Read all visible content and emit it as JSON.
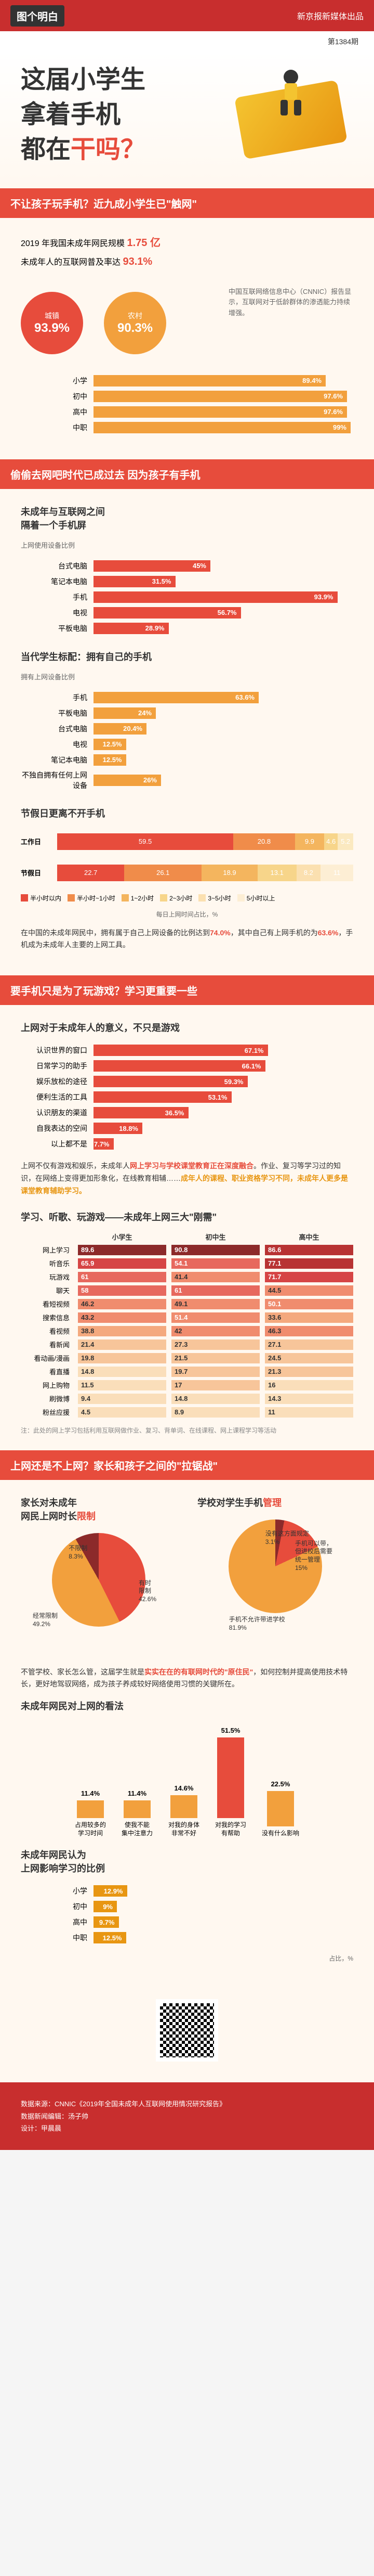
{
  "header": {
    "logo": "图个明白",
    "brand": "新京报新媒体出品",
    "issue": "第1384期"
  },
  "hero": {
    "line1": "这届小学生",
    "line2": "拿着手机",
    "line3_a": "都在",
    "line3_b": "干吗？"
  },
  "s1": {
    "title": "不让孩子玩手机？近九成小学生已\"触网\"",
    "lead_a": "2019 年我国未成年网民规模",
    "lead_b": "1.75 亿",
    "lead_c": "未成年人的互联网普及率达",
    "lead_d": "93.1%",
    "circles": [
      {
        "label": "城镇",
        "pct": "93.9%"
      },
      {
        "label": "农村",
        "pct": "90.3%"
      }
    ],
    "aside": "中国互联网络信息中心（CNNIC）报告显示，互联网对于低龄群体的渗透能力持续增强。",
    "bars": {
      "max": 100,
      "colors": [
        "#f2a03d",
        "#f2a03d",
        "#f2a03d",
        "#f2a03d"
      ],
      "rows": [
        {
          "label": "小学",
          "val": 89.4
        },
        {
          "label": "初中",
          "val": 97.6
        },
        {
          "label": "高中",
          "val": 97.6
        },
        {
          "label": "中职",
          "val": 99.0
        }
      ]
    }
  },
  "s2": {
    "title": "偷偷去网吧时代已成过去 因为孩子有手机",
    "sub1": "未成年与互联网之间\n隔着一个手机屏",
    "sub1b": "上网使用设备比例",
    "bars1": {
      "colors": [
        "#e74c3c",
        "#e74c3c",
        "#e74c3c",
        "#e74c3c",
        "#e74c3c"
      ],
      "rows": [
        {
          "label": "台式电脑",
          "val": 45.0
        },
        {
          "label": "笔记本电脑",
          "val": 31.5
        },
        {
          "label": "手机",
          "val": 93.9
        },
        {
          "label": "电视",
          "val": 56.7
        },
        {
          "label": "平板电脑",
          "val": 28.9
        }
      ]
    },
    "sub2": "当代学生标配：拥有自己的手机",
    "sub2b": "拥有上网设备比例",
    "bars2": {
      "colors": [
        "#f2a03d",
        "#f2a03d",
        "#f2a03d",
        "#f2a03d",
        "#f2a03d",
        "#f2a03d"
      ],
      "rows": [
        {
          "label": "手机",
          "val": 63.6
        },
        {
          "label": "平板电脑",
          "val": 24.0
        },
        {
          "label": "台式电脑",
          "val": 20.4
        },
        {
          "label": "电视",
          "val": 12.5
        },
        {
          "label": "笔记本电脑",
          "val": 12.5
        },
        {
          "label": "不独自拥有任何上网设备",
          "val": 26.0
        }
      ]
    },
    "sub3": "节假日更离不开手机",
    "stacked": {
      "rows": [
        {
          "label": "工作日",
          "segs": [
            {
              "v": 59.5,
              "c": "#e74c3c"
            },
            {
              "v": 20.8,
              "c": "#f08c4a"
            },
            {
              "v": 9.9,
              "c": "#f4b55e"
            },
            {
              "v": 4.6,
              "c": "#f7d58a"
            },
            {
              "v": 5.2,
              "c": "#fbe9c0"
            }
          ]
        },
        {
          "label": "节假日",
          "segs": [
            {
              "v": 22.7,
              "c": "#e74c3c"
            },
            {
              "v": 26.1,
              "c": "#f08c4a"
            },
            {
              "v": 18.9,
              "c": "#f4b55e"
            },
            {
              "v": 13.1,
              "c": "#f7d58a"
            },
            {
              "v": 8.2,
              "c": "#fbe0b0"
            },
            {
              "v": 11.0,
              "c": "#fdeed4"
            }
          ]
        }
      ],
      "legend": [
        {
          "c": "#e74c3c",
          "t": "半小时以内"
        },
        {
          "c": "#f08c4a",
          "t": "半小时~1小时"
        },
        {
          "c": "#f4b55e",
          "t": "1~2小时"
        },
        {
          "c": "#f7d58a",
          "t": "2~3小时"
        },
        {
          "c": "#fbe0b0",
          "t": "3~5小时"
        },
        {
          "c": "#fdeed4",
          "t": "5小时以上"
        }
      ],
      "axis_label": "每日上网时间占比，%"
    },
    "narr_a": "在中国的未成年网民中，拥有属于自己上网设备的比例达到",
    "narr_b": "74.0%",
    "narr_c": "，其中自己有上网手机的为",
    "narr_d": "63.6%",
    "narr_e": "，手机成为未成年人主要的上网工具。"
  },
  "s3": {
    "title": "要手机只是为了玩游戏？学习更重要一些",
    "sub": "上网对于未成年人的意义，不只是游戏",
    "bars": {
      "colors": [
        "#e74c3c",
        "#e74c3c",
        "#e74c3c",
        "#e74c3c",
        "#e74c3c",
        "#e74c3c",
        "#e74c3c"
      ],
      "rows": [
        {
          "label": "认识世界的窗口",
          "val": 67.1
        },
        {
          "label": "日常学习的助手",
          "val": 66.1
        },
        {
          "label": "娱乐放松的途径",
          "val": 59.3
        },
        {
          "label": "便利生活的工具",
          "val": 53.1
        },
        {
          "label": "认识朋友的渠道",
          "val": 36.5
        },
        {
          "label": "自我表达的空间",
          "val": 18.8
        },
        {
          "label": "以上都不是",
          "val": 7.7
        }
      ]
    },
    "narr": "上网不仅有游戏和娱乐，未成年人<span class='hl'>网上学习与学校课堂教育正在深度融合</span>。作业、复习等学习过的知识，在网络上变得更加形象化，在线教育相辅……<span class='hl2'>成年人的课程、职业资格学习不同，未成年人更多是课堂教育辅助学习。</span>",
    "sub2": "学习、听歌、玩游戏——未成年上网三大\"刚需\"",
    "table": {
      "cols": [
        "小学生",
        "初中生",
        "高中生"
      ],
      "color_scale": [
        "#8c2a2a",
        "#b83333",
        "#d64545",
        "#e7695e",
        "#f08c6e",
        "#f4a97e",
        "#f7c59a",
        "#fadeba"
      ],
      "rows": [
        {
          "label": "网上学习",
          "vals": [
            89.6,
            90.8,
            86.6
          ]
        },
        {
          "label": "听音乐",
          "vals": [
            65.9,
            54.1,
            77.1
          ]
        },
        {
          "label": "玩游戏",
          "vals": [
            61.0,
            41.4,
            71.7
          ]
        },
        {
          "label": "聊天",
          "vals": [
            58.0,
            61.0,
            44.5
          ]
        },
        {
          "label": "看短视频",
          "vals": [
            46.2,
            49.1,
            50.1
          ]
        },
        {
          "label": "搜索信息",
          "vals": [
            43.2,
            51.4,
            33.6
          ]
        },
        {
          "label": "看视频",
          "vals": [
            38.8,
            42.0,
            46.3
          ]
        },
        {
          "label": "看新闻",
          "vals": [
            21.4,
            27.3,
            27.1
          ]
        },
        {
          "label": "看动画/漫画",
          "vals": [
            19.8,
            21.5,
            24.5
          ]
        },
        {
          "label": "看直播",
          "vals": [
            14.8,
            19.7,
            21.3
          ]
        },
        {
          "label": "网上购物",
          "vals": [
            11.5,
            17.0,
            16.0
          ]
        },
        {
          "label": "刷微博",
          "vals": [
            9.4,
            14.8,
            14.3
          ]
        },
        {
          "label": "粉丝应援",
          "vals": [
            4.5,
            8.9,
            11.0
          ]
        }
      ],
      "note": "注：此处的网上学习包括利用互联网做作业、复习、背单词、在线课程、网上课程学习等活动"
    }
  },
  "s4": {
    "title": "上网还是不上网？家长和孩子之间的\"拉锯战\"",
    "col1_title": "家长对未成年\n网民上网时长限制",
    "col1_title_hl": "限制",
    "pie1": {
      "segs": [
        {
          "label": "有时限制",
          "pct": 42.6,
          "color": "#e74c3c"
        },
        {
          "label": "经常限制",
          "pct": 49.2,
          "color": "#f2a03d"
        },
        {
          "label": "不限制",
          "pct": 8.3,
          "color": "#8c2a2a"
        }
      ]
    },
    "col2_title": "学校对学生手机管理",
    "col2_title_hl": "管理",
    "pie2": {
      "segs": [
        {
          "label": "没有这方面规定",
          "pct": 3.1,
          "color": "#8c2a2a"
        },
        {
          "label": "手机可以带，但进校后需要统一管理",
          "pct": 15.0,
          "color": "#e74c3c"
        },
        {
          "label": "手机不允许带进学校",
          "pct": 81.9,
          "color": "#f2a03d"
        }
      ]
    },
    "narr": "不管学校、家长怎么管，这届学生就是<span class='hl'>实实在在的有联网时代的\"原住民\"</span>，如何控制并提高使用技术特长，更好地驾驭网络，成为孩子养成较好网络使用习惯的关键所在。",
    "sub2": "未成年网民对上网的看法",
    "vbars": {
      "max": 60,
      "rows": [
        {
          "label": "占用较多的\n学习时间",
          "val": 11.4,
          "color": "#f2a03d"
        },
        {
          "label": "使我不能\n集中注意力",
          "val": 11.4,
          "color": "#f2a03d"
        },
        {
          "label": "对我的身体\n非常不好",
          "val": 14.6,
          "color": "#f2a03d"
        },
        {
          "label": "对我的学习\n有帮助",
          "val": 51.5,
          "color": "#e74c3c"
        },
        {
          "label": "没有什么影响",
          "val": 22.5,
          "color": "#f2a03d"
        }
      ]
    },
    "sub3": "未成年网民认为\n上网影响学习的比例",
    "bars3": {
      "rows": [
        {
          "label": "小学",
          "val": 12.9,
          "color": "#e89612"
        },
        {
          "label": "初中",
          "val": 9.0,
          "color": "#e89612"
        },
        {
          "label": "高中",
          "val": 9.7,
          "color": "#e89612"
        },
        {
          "label": "中职",
          "val": 12.5,
          "color": "#e89612"
        }
      ],
      "axis": "占比，%"
    }
  },
  "footer": {
    "source": "数据来源：CNNIC《2019年全国未成年人互联网使用情况研究报告》",
    "editor": "数据新闻编辑：汤子帅",
    "design": "设计：甲晨晨"
  }
}
